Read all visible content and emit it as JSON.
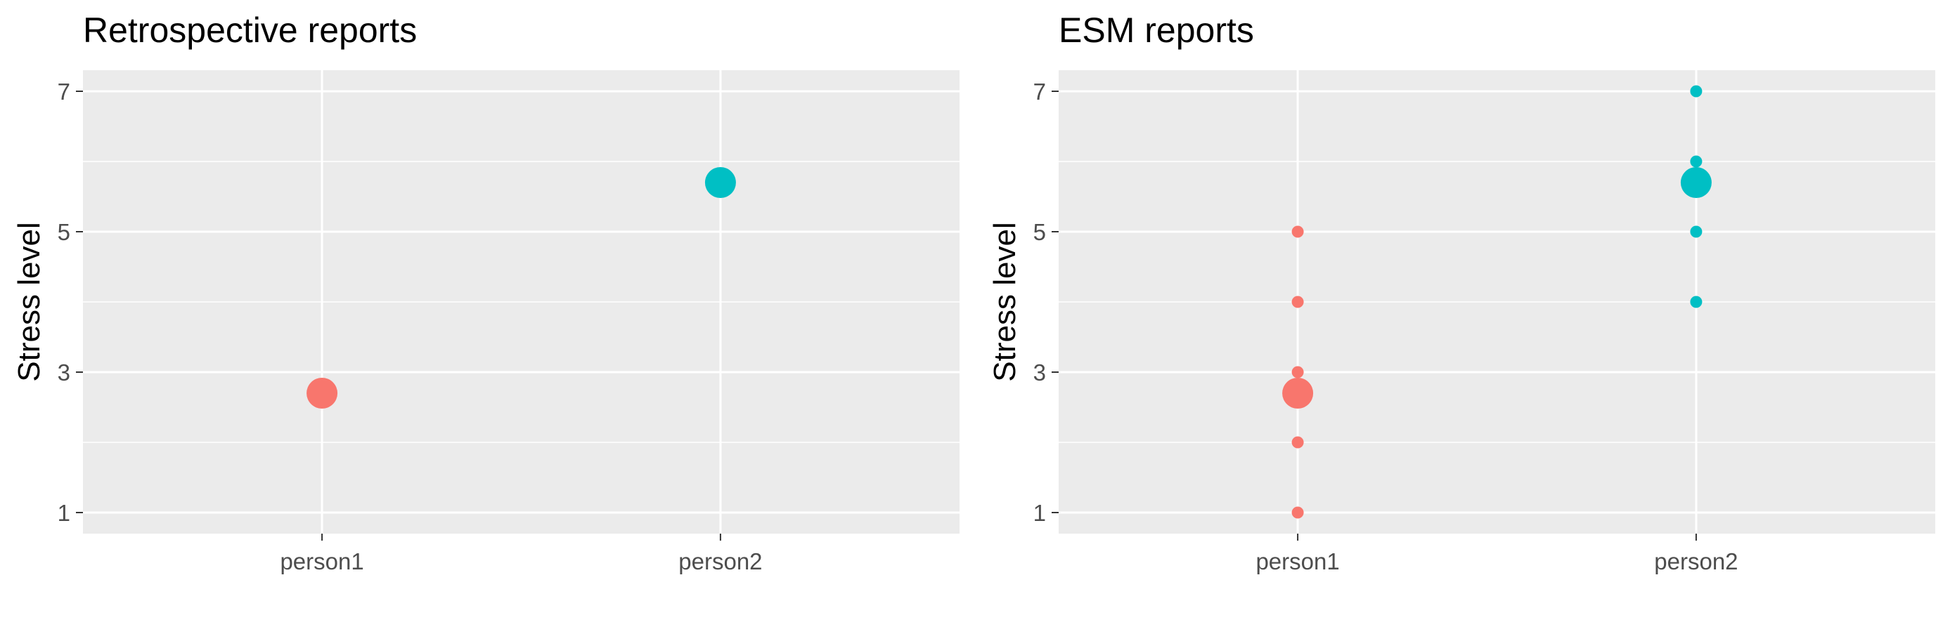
{
  "chart_data": [
    {
      "type": "scatter",
      "title": "Retrospective reports",
      "xlabel": "",
      "ylabel": "Stress level",
      "categories": [
        "person1",
        "person2"
      ],
      "y_ticks": [
        1,
        3,
        5,
        7
      ],
      "ylim": [
        0.7,
        7.3
      ],
      "grid": true,
      "legend": "none",
      "colors": {
        "person1": "#F8766D",
        "person2": "#00BFC4"
      },
      "points": [
        {
          "x": "person1",
          "y": 2.7,
          "size": "large"
        },
        {
          "x": "person2",
          "y": 5.7,
          "size": "large"
        }
      ]
    },
    {
      "type": "scatter",
      "title": "ESM reports",
      "xlabel": "",
      "ylabel": "Stress level",
      "categories": [
        "person1",
        "person2"
      ],
      "y_ticks": [
        1,
        3,
        5,
        7
      ],
      "ylim": [
        0.7,
        7.3
      ],
      "grid": true,
      "legend": "none",
      "colors": {
        "person1": "#F8766D",
        "person2": "#00BFC4"
      },
      "points": [
        {
          "x": "person1",
          "y": 1,
          "size": "small"
        },
        {
          "x": "person1",
          "y": 2,
          "size": "small"
        },
        {
          "x": "person1",
          "y": 3,
          "size": "small"
        },
        {
          "x": "person1",
          "y": 4,
          "size": "small"
        },
        {
          "x": "person1",
          "y": 5,
          "size": "small"
        },
        {
          "x": "person1",
          "y": 2.7,
          "size": "large"
        },
        {
          "x": "person2",
          "y": 4,
          "size": "small"
        },
        {
          "x": "person2",
          "y": 5,
          "size": "small"
        },
        {
          "x": "person2",
          "y": 6,
          "size": "small"
        },
        {
          "x": "person2",
          "y": 7,
          "size": "small"
        },
        {
          "x": "person2",
          "y": 5.7,
          "size": "large"
        }
      ]
    }
  ]
}
